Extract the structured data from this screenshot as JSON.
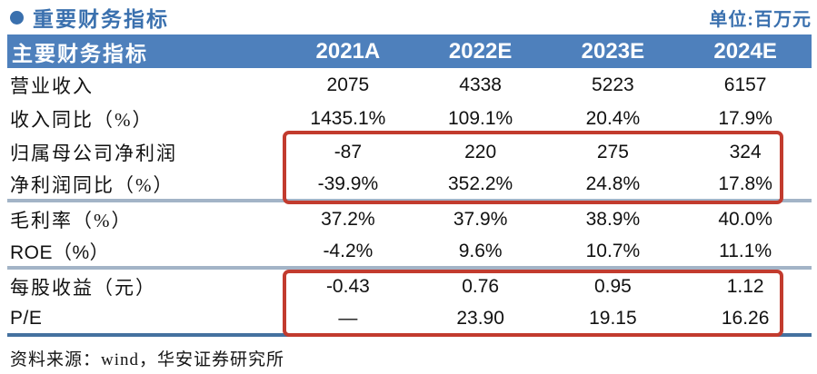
{
  "header_bar": {
    "title": "重要财务指标",
    "unit_label": "单位:百万元"
  },
  "table": {
    "columns": [
      "主要财务指标",
      "2021A",
      "2022E",
      "2023E",
      "2024E"
    ],
    "rows": [
      {
        "label": "营业收入",
        "values": [
          "2075",
          "4338",
          "5223",
          "6157"
        ]
      },
      {
        "label": "收入同比（%）",
        "values": [
          "1435.1%",
          "109.1%",
          "20.4%",
          "17.9%"
        ]
      },
      {
        "label": "归属母公司净利润",
        "values": [
          "-87",
          "220",
          "275",
          "324"
        ]
      },
      {
        "label": "净利润同比（%）",
        "values": [
          "-39.9%",
          "352.2%",
          "24.8%",
          "17.8%"
        ]
      },
      {
        "label": "毛利率（%）",
        "values": [
          "37.2%",
          "37.9%",
          "38.9%",
          "40.0%"
        ]
      },
      {
        "label": "ROE（%）",
        "values": [
          "-4.2%",
          "9.6%",
          "10.7%",
          "11.1%"
        ]
      },
      {
        "label": "每股收益（元）",
        "values": [
          "-0.43",
          "0.76",
          "0.95",
          "1.12"
        ]
      },
      {
        "label": "P/E",
        "values": [
          "—",
          "23.90",
          "19.15",
          "16.26"
        ]
      }
    ]
  },
  "highlights": [
    {
      "rows": [
        "归属母公司净利润",
        "净利润同比（%）"
      ],
      "color": "#c23b2e"
    },
    {
      "rows": [
        "每股收益（元）",
        "P/E"
      ],
      "color": "#c23b2e"
    }
  ],
  "footer": {
    "source": "资料来源：wind，华安证券研究所"
  },
  "colors": {
    "header_bg": "#4e80bc",
    "title_blue": "#3a70ae",
    "highlight_red": "#c23b2e",
    "separator_light": "#a3b4c7",
    "separator_dark": "#44719f"
  }
}
